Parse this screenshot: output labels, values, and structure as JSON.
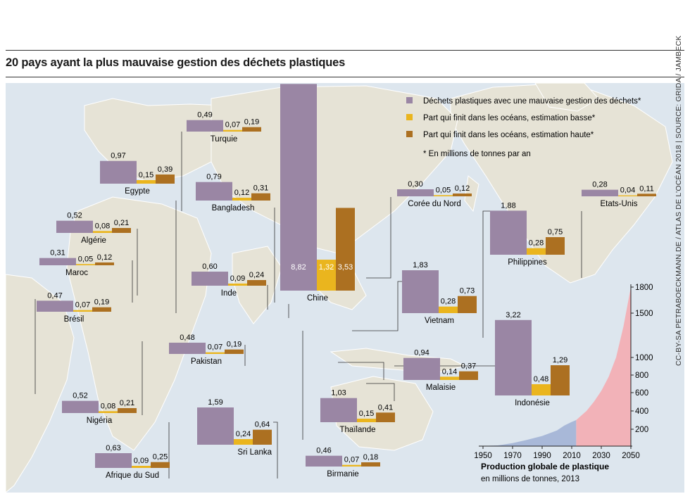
{
  "title": "20 pays ayant la plus mauvaise gestion des déchets plastiques",
  "credit": "CC-BY-SA PETRABOECKMANN.DE / ATLAS DE L’OCÉAN 2018 | SOURCE: GRIDA / JAMBECK",
  "colors": {
    "mismanaged": "#9a86a4",
    "ocean_low": "#eab51e",
    "ocean_high": "#ac7021",
    "land": "#e6e3d6",
    "ocean": "#ffffff",
    "historical_area": "#a8b8d8",
    "projection_area": "#f2b2b8"
  },
  "chart_data": [
    {
      "type": "bar",
      "unit_note": "* En millions de tonnes par an",
      "legend_position": "top-right",
      "series": [
        {
          "key": "mismanaged",
          "name": "Déchets plastiques avec une mauvaise gestion des déchets*"
        },
        {
          "key": "ocean_low",
          "name": "Part qui finit dans les océans, estimation basse*"
        },
        {
          "key": "ocean_high",
          "name": "Part qui finit dans les océans, estimation haute*"
        }
      ],
      "countries": [
        {
          "name": "Chine",
          "mismanaged": 8.82,
          "ocean_low": 1.32,
          "ocean_high": 3.53,
          "labels": [
            "8,82",
            "1,32",
            "3,53"
          ]
        },
        {
          "name": "Indonésie",
          "mismanaged": 3.22,
          "ocean_low": 0.48,
          "ocean_high": 1.29,
          "labels": [
            "3,22",
            "0,48",
            "1,29"
          ]
        },
        {
          "name": "Philippines",
          "mismanaged": 1.88,
          "ocean_low": 0.28,
          "ocean_high": 0.75,
          "labels": [
            "1,88",
            "0,28",
            "0,75"
          ]
        },
        {
          "name": "Vietnam",
          "mismanaged": 1.83,
          "ocean_low": 0.28,
          "ocean_high": 0.73,
          "labels": [
            "1,83",
            "0,28",
            "0,73"
          ]
        },
        {
          "name": "Sri Lanka",
          "mismanaged": 1.59,
          "ocean_low": 0.24,
          "ocean_high": 0.64,
          "labels": [
            "1,59",
            "0,24",
            "0,64"
          ]
        },
        {
          "name": "Thaïlande",
          "mismanaged": 1.03,
          "ocean_low": 0.15,
          "ocean_high": 0.41,
          "labels": [
            "1,03",
            "0,15",
            "0,41"
          ]
        },
        {
          "name": "Egypte",
          "mismanaged": 0.97,
          "ocean_low": 0.15,
          "ocean_high": 0.39,
          "labels": [
            "0,97",
            "0,15",
            "0,39"
          ]
        },
        {
          "name": "Malaisie",
          "mismanaged": 0.94,
          "ocean_low": 0.14,
          "ocean_high": 0.37,
          "labels": [
            "0,94",
            "0,14",
            "0,37"
          ]
        },
        {
          "name": "Nigéria",
          "mismanaged": 0.52,
          "ocean_low": 0.08,
          "ocean_high": 0.21,
          "labels": [
            "0,52",
            "0,08",
            "0,21"
          ]
        },
        {
          "name": "Bangladesh",
          "mismanaged": 0.79,
          "ocean_low": 0.12,
          "ocean_high": 0.31,
          "labels": [
            "0,79",
            "0,12",
            "0,31"
          ]
        },
        {
          "name": "Afrique du Sud",
          "mismanaged": 0.63,
          "ocean_low": 0.09,
          "ocean_high": 0.25,
          "labels": [
            "0,63",
            "0,09",
            "0,25"
          ]
        },
        {
          "name": "Inde",
          "mismanaged": 0.6,
          "ocean_low": 0.09,
          "ocean_high": 0.24,
          "labels": [
            "0,60",
            "0,09",
            "0,24"
          ]
        },
        {
          "name": "Algérie",
          "mismanaged": 0.52,
          "ocean_low": 0.08,
          "ocean_high": 0.21,
          "labels": [
            "0,52",
            "0,08",
            "0,21"
          ]
        },
        {
          "name": "Turquie",
          "mismanaged": 0.49,
          "ocean_low": 0.07,
          "ocean_high": 0.19,
          "labels": [
            "0,49",
            "0,07",
            "0,19"
          ]
        },
        {
          "name": "Pakistan",
          "mismanaged": 0.48,
          "ocean_low": 0.07,
          "ocean_high": 0.19,
          "labels": [
            "0,48",
            "0,07",
            "0,19"
          ]
        },
        {
          "name": "Brésil",
          "mismanaged": 0.47,
          "ocean_low": 0.07,
          "ocean_high": 0.19,
          "labels": [
            "0,47",
            "0,07",
            "0,19"
          ]
        },
        {
          "name": "Birmanie",
          "mismanaged": 0.46,
          "ocean_low": 0.07,
          "ocean_high": 0.18,
          "labels": [
            "0,46",
            "0,07",
            "0,18"
          ]
        },
        {
          "name": "Maroc",
          "mismanaged": 0.31,
          "ocean_low": 0.05,
          "ocean_high": 0.12,
          "labels": [
            "0,31",
            "0,05",
            "0,12"
          ]
        },
        {
          "name": "Corée du Nord",
          "mismanaged": 0.3,
          "ocean_low": 0.05,
          "ocean_high": 0.12,
          "labels": [
            "0,30",
            "0,05",
            "0,12"
          ]
        },
        {
          "name": "Etats-Unis",
          "mismanaged": 0.28,
          "ocean_low": 0.04,
          "ocean_high": 0.11,
          "labels": [
            "0,28",
            "0,04",
            "0,11"
          ]
        }
      ]
    },
    {
      "type": "area",
      "title": "Production globale de plastique",
      "subtitle": "en millions de tonnes, 2013",
      "x_ticks": [
        "1950",
        "1970",
        "1990",
        "2010",
        "2030",
        "2050"
      ],
      "y_ticks": [
        "200",
        "400",
        "600",
        "800",
        "1000",
        "1500",
        "1800"
      ],
      "xlim": [
        1950,
        2050
      ],
      "historical_until": 2013,
      "series": [
        {
          "key": "historical",
          "x": [
            1950,
            1960,
            1970,
            1980,
            1990,
            2000,
            2005,
            2010,
            2013
          ],
          "y": [
            2,
            8,
            35,
            75,
            120,
            185,
            240,
            280,
            300
          ]
        },
        {
          "key": "projection",
          "x": [
            2013,
            2020,
            2025,
            2030,
            2035,
            2040,
            2045,
            2050
          ],
          "y": [
            300,
            400,
            500,
            620,
            780,
            1000,
            1350,
            1800
          ]
        }
      ]
    }
  ]
}
